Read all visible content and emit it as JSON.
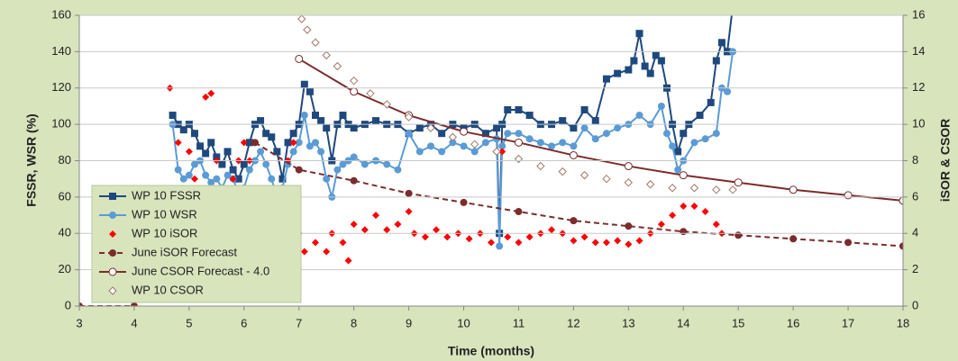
{
  "chart_data": {
    "type": "line",
    "xlabel": "Time (months)",
    "ylabel": "FSSR, WSR (%)",
    "y2label": "iSOR & CSOR",
    "xlim": [
      3,
      18
    ],
    "xticks": [
      3,
      4,
      5,
      6,
      7,
      8,
      9,
      10,
      11,
      12,
      13,
      14,
      15,
      16,
      17,
      18
    ],
    "ylim": [
      0,
      160
    ],
    "yticks": [
      0,
      20,
      40,
      60,
      80,
      100,
      120,
      140,
      160
    ],
    "y2lim": [
      0,
      16
    ],
    "y2ticks": [
      0,
      2,
      4,
      6,
      8,
      10,
      12,
      14,
      16
    ],
    "grid": true,
    "legend": "lower left",
    "series": [
      {
        "name": "WP 10 FSSR",
        "color": "#1f497d",
        "marker": "square",
        "line": true,
        "x": [
          4.7,
          4.8,
          4.9,
          5.0,
          5.1,
          5.2,
          5.3,
          5.4,
          5.5,
          5.6,
          5.7,
          5.8,
          5.9,
          6.0,
          6.1,
          6.2,
          6.3,
          6.4,
          6.5,
          6.6,
          6.7,
          6.8,
          6.9,
          7.0,
          7.1,
          7.2,
          7.3,
          7.4,
          7.5,
          7.6,
          7.7,
          7.8,
          7.9,
          8.0,
          8.2,
          8.4,
          8.6,
          8.8,
          9.0,
          9.2,
          9.4,
          9.6,
          9.8,
          10.0,
          10.2,
          10.4,
          10.6,
          10.65,
          10.7,
          10.8,
          11.0,
          11.2,
          11.4,
          11.6,
          11.8,
          12.0,
          12.2,
          12.4,
          12.6,
          12.8,
          13.0,
          13.1,
          13.2,
          13.3,
          13.4,
          13.5,
          13.6,
          13.7,
          13.8,
          13.9,
          14.0,
          14.1,
          14.3,
          14.5,
          14.6,
          14.7,
          14.8,
          14.9
        ],
        "values": [
          105,
          100,
          97,
          100,
          95,
          88,
          84,
          90,
          82,
          78,
          85,
          75,
          70,
          78,
          90,
          100,
          102,
          95,
          93,
          85,
          70,
          90,
          95,
          100,
          122,
          118,
          105,
          102,
          98,
          80,
          100,
          105,
          100,
          98,
          100,
          102,
          100,
          100,
          95,
          98,
          100,
          95,
          100,
          98,
          100,
          95,
          98,
          40,
          100,
          108,
          108,
          105,
          100,
          100,
          102,
          98,
          108,
          102,
          125,
          128,
          130,
          135,
          150,
          132,
          128,
          138,
          135,
          120,
          100,
          85,
          95,
          100,
          105,
          112,
          135,
          145,
          140,
          165
        ]
      },
      {
        "name": "WP 10 WSR",
        "color": "#5b9bd5",
        "marker": "circle",
        "line": true,
        "x": [
          4.7,
          4.8,
          4.9,
          5.0,
          5.1,
          5.2,
          5.3,
          5.4,
          5.5,
          5.6,
          5.7,
          5.8,
          5.9,
          6.0,
          6.1,
          6.2,
          6.3,
          6.4,
          6.5,
          6.6,
          6.7,
          6.8,
          6.9,
          7.0,
          7.1,
          7.2,
          7.3,
          7.4,
          7.5,
          7.6,
          7.7,
          7.8,
          7.9,
          8.0,
          8.2,
          8.4,
          8.6,
          8.8,
          9.0,
          9.2,
          9.4,
          9.6,
          9.8,
          10.0,
          10.2,
          10.4,
          10.6,
          10.65,
          10.7,
          10.8,
          11.0,
          11.2,
          11.4,
          11.6,
          11.8,
          12.0,
          12.2,
          12.4,
          12.6,
          12.8,
          13.0,
          13.2,
          13.4,
          13.6,
          13.7,
          13.8,
          13.9,
          14.0,
          14.2,
          14.4,
          14.6,
          14.7,
          14.8,
          14.9
        ],
        "values": [
          100,
          75,
          70,
          72,
          78,
          80,
          72,
          68,
          70,
          65,
          72,
          70,
          62,
          65,
          75,
          80,
          85,
          78,
          70,
          60,
          65,
          78,
          85,
          90,
          105,
          88,
          90,
          85,
          70,
          60,
          75,
          78,
          80,
          82,
          78,
          80,
          78,
          75,
          95,
          85,
          88,
          85,
          90,
          88,
          85,
          90,
          92,
          33,
          88,
          95,
          95,
          92,
          90,
          88,
          90,
          88,
          98,
          92,
          95,
          98,
          100,
          105,
          100,
          110,
          95,
          88,
          75,
          80,
          90,
          92,
          95,
          120,
          118,
          140
        ]
      },
      {
        "name": "WP 10 iSOR",
        "color": "#ff0000",
        "marker": "diamond",
        "line": false,
        "axis": "y2",
        "x": [
          4.65,
          4.8,
          5.0,
          5.1,
          5.3,
          5.4,
          5.5,
          5.6,
          5.8,
          5.9,
          6.0,
          6.1,
          6.2,
          6.3,
          6.5,
          6.6,
          6.7,
          6.8,
          6.9,
          7.0,
          7.1,
          7.3,
          7.5,
          7.6,
          7.8,
          7.9,
          8.0,
          8.2,
          8.4,
          8.6,
          8.8,
          9.0,
          9.1,
          9.3,
          9.5,
          9.7,
          9.9,
          10.1,
          10.3,
          10.5,
          10.7,
          10.8,
          11.0,
          11.2,
          11.4,
          11.6,
          11.8,
          12.0,
          12.2,
          12.4,
          12.6,
          12.8,
          13.0,
          13.2,
          13.4,
          13.6,
          13.8,
          14.0,
          14.2,
          14.4,
          14.6,
          14.7
        ],
        "values": [
          12,
          9,
          8.5,
          7,
          11.5,
          11.7,
          8,
          6,
          7,
          8,
          9,
          8,
          6,
          5,
          4,
          3.5,
          2.5,
          8,
          9,
          4,
          3,
          3.5,
          3,
          4,
          3.5,
          2.5,
          4.5,
          4.2,
          5,
          4.2,
          4.5,
          5.2,
          4,
          3.8,
          4.2,
          3.8,
          4,
          3.7,
          4,
          3.5,
          8.5,
          3.8,
          3.5,
          3.8,
          4,
          4.2,
          4,
          3.6,
          3.8,
          3.5,
          3.5,
          3.6,
          3.4,
          3.6,
          4,
          4.5,
          5,
          5.5,
          5.5,
          5.2,
          4.5,
          4
        ]
      },
      {
        "name": "June iSOR Forecast",
        "color": "#7b2c2c",
        "marker": "dot",
        "line": true,
        "dash": true,
        "axis": "y2",
        "x": [
          3,
          4,
          5,
          6.2,
          7,
          8,
          9,
          10,
          11,
          12,
          13,
          14,
          15,
          16,
          17,
          18
        ],
        "values": [
          0,
          0,
          null,
          9.0,
          7.5,
          6.9,
          6.2,
          5.7,
          5.2,
          4.7,
          4.4,
          4.1,
          3.9,
          3.7,
          3.5,
          3.3
        ]
      },
      {
        "name": "June CSOR Forecast - 4.0",
        "color": "#7b2c2c",
        "marker": "open-circle",
        "line": true,
        "axis": "y2",
        "x": [
          7,
          8,
          9,
          10,
          11,
          12,
          13,
          14,
          15,
          16,
          17,
          18
        ],
        "values": [
          13.6,
          11.8,
          10.5,
          9.6,
          9.0,
          8.3,
          7.7,
          7.2,
          6.8,
          6.4,
          6.1,
          5.8
        ]
      },
      {
        "name": "WP 10 CSOR",
        "color": "#a07868",
        "marker": "open-diamond",
        "line": false,
        "axis": "y2",
        "x": [
          7.05,
          7.15,
          7.3,
          7.5,
          7.7,
          8.0,
          8.3,
          8.6,
          9.0,
          9.4,
          9.8,
          10.2,
          10.6,
          11.0,
          11.4,
          11.8,
          12.2,
          12.6,
          13.0,
          13.4,
          13.8,
          14.2,
          14.6,
          14.9
        ],
        "values": [
          15.8,
          15.2,
          14.5,
          13.8,
          13.2,
          12.4,
          11.7,
          11.1,
          10.4,
          9.8,
          9.3,
          8.9,
          8.5,
          8.1,
          7.7,
          7.4,
          7.2,
          7.0,
          6.8,
          6.7,
          6.5,
          6.5,
          6.4,
          6.4
        ]
      }
    ]
  }
}
